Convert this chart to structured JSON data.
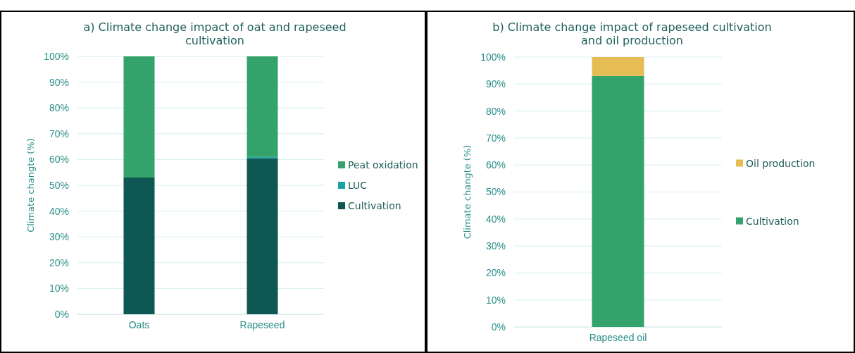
{
  "chart_data": [
    {
      "type": "bar",
      "title": "a) Climate change impact of oat and rapeseed cultivation",
      "ylabel": "Climate changte (%)",
      "categories": [
        "Oats",
        "Rapeseed"
      ],
      "stacked": true,
      "series": [
        {
          "name": "Cultivation",
          "color": "#0f5753",
          "values": [
            53,
            60.5
          ]
        },
        {
          "name": "LUC",
          "color": "#1aa3a3",
          "values": [
            0,
            0.5
          ]
        },
        {
          "name": "Peat oxidation",
          "color": "#34a36b",
          "values": [
            47,
            39
          ]
        }
      ],
      "ylim": [
        0,
        100
      ],
      "yticks": [
        {
          "value": 0,
          "label": "0%"
        },
        {
          "value": 10,
          "label": "10%"
        },
        {
          "value": 20,
          "label": "20%"
        },
        {
          "value": 30,
          "label": "30%"
        },
        {
          "value": 40,
          "label": "40%"
        },
        {
          "value": 50,
          "label": "50%"
        },
        {
          "value": 60,
          "label": "60%"
        },
        {
          "value": 70,
          "label": "70%"
        },
        {
          "value": 80,
          "label": "80%"
        },
        {
          "value": 90,
          "label": "90%"
        },
        {
          "value": 100,
          "label": "100%"
        }
      ],
      "grid": "y",
      "legend": "right"
    },
    {
      "type": "bar",
      "title": "b) Climate change impact of rapeseed cultivation and oil production",
      "ylabel": "Climate changte (%)",
      "categories": [
        "Rapeseed oil"
      ],
      "stacked": true,
      "series": [
        {
          "name": "Cultivation",
          "color": "#34a36b",
          "values": [
            93
          ]
        },
        {
          "name": "Oil production",
          "color": "#e6bd55",
          "values": [
            7
          ]
        }
      ],
      "ylim": [
        0,
        100
      ],
      "yticks": [
        {
          "value": 0,
          "label": "0%"
        },
        {
          "value": 10,
          "label": "10%"
        },
        {
          "value": 20,
          "label": "20%"
        },
        {
          "value": 30,
          "label": "30%"
        },
        {
          "value": 40,
          "label": "40%"
        },
        {
          "value": 50,
          "label": "50%"
        },
        {
          "value": 60,
          "label": "60%"
        },
        {
          "value": 70,
          "label": "70%"
        },
        {
          "value": 80,
          "label": "80%"
        },
        {
          "value": 90,
          "label": "90%"
        },
        {
          "value": 100,
          "label": "100%"
        }
      ],
      "grid": "y",
      "legend": "right"
    }
  ]
}
